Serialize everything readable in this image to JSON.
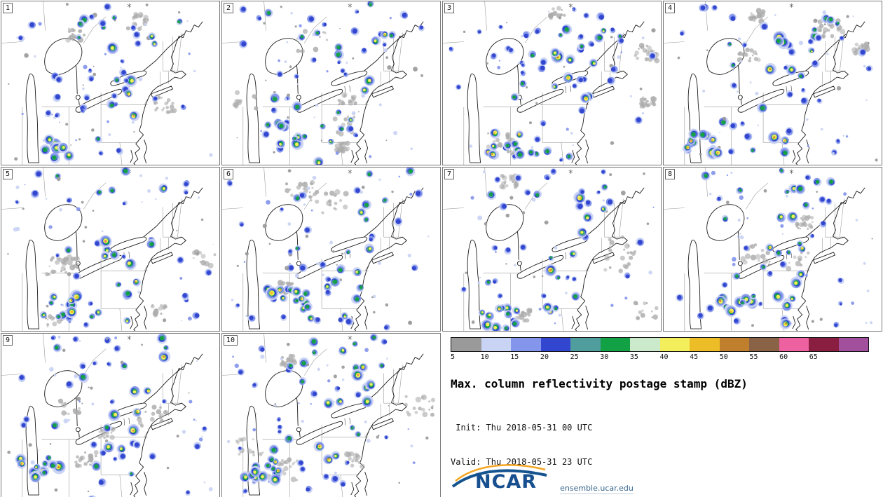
{
  "panels": [
    {
      "label": "1"
    },
    {
      "label": "2"
    },
    {
      "label": "3"
    },
    {
      "label": "4"
    },
    {
      "label": "5"
    },
    {
      "label": "6"
    },
    {
      "label": "7"
    },
    {
      "label": "8"
    },
    {
      "label": "9"
    },
    {
      "label": "10"
    }
  ],
  "legend": {
    "title": "Max. column reflectivity postage stamp (dBZ)",
    "init": " Init: Thu 2018-05-31 00 UTC",
    "valid": "Valid: Thu 2018-05-31 23 UTC",
    "colorbar": {
      "ticks": [
        5,
        10,
        15,
        20,
        25,
        30,
        35,
        40,
        45,
        50,
        55,
        60,
        65
      ],
      "colors": [
        "#9a9a9a",
        "#c9d3f3",
        "#8496ec",
        "#3246cf",
        "#4f9d9d",
        "#12a145",
        "#cbe9cb",
        "#f3ee5c",
        "#edbd27",
        "#bf7f2d",
        "#8a6245",
        "#ee61a1",
        "#8a1e40",
        "#a24f9e"
      ]
    }
  },
  "branding": {
    "name": "NCAR",
    "url": "ensemble.ucar.edu",
    "blue": "#174f8f",
    "orange": "#f5a623"
  },
  "chart_data": {
    "type": "heatmap",
    "title": "Max. column reflectivity postage stamp (dBZ)",
    "init": "Thu 2018-05-31 00 UTC",
    "valid": "Thu 2018-05-31 23 UTC",
    "variable": "Max. column reflectivity",
    "units": "dBZ",
    "ensemble_members": [
      "1",
      "2",
      "3",
      "4",
      "5",
      "6",
      "7",
      "8",
      "9",
      "10"
    ],
    "colorbar_ticks": [
      5,
      10,
      15,
      20,
      25,
      30,
      35,
      40,
      45,
      50,
      55,
      60,
      65
    ],
    "colorbar_colors": [
      "#9a9a9a",
      "#c9d3f3",
      "#8496ec",
      "#3246cf",
      "#4f9d9d",
      "#12a145",
      "#cbe9cb",
      "#f3ee5c",
      "#edbd27",
      "#bf7f2d",
      "#8a6245",
      "#ee61a1",
      "#8a1e40",
      "#a24f9e"
    ],
    "layout": "10 map panels in a 4x3 grid, legend in bottom-right two cells",
    "region": "Great Lakes and Northeastern United States"
  }
}
